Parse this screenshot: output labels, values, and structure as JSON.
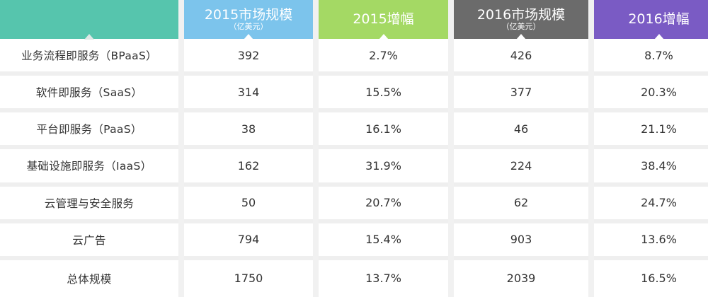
{
  "chart_data": {
    "type": "table",
    "columns": [
      {
        "main": "",
        "sub": "",
        "color": "#56c5ad"
      },
      {
        "main": "2015市场规模",
        "sub": "（亿美元）",
        "color": "#7cc4ec"
      },
      {
        "main": "2015增幅",
        "sub": "",
        "color": "#a4d964"
      },
      {
        "main": "2016市场规模",
        "sub": "（亿美元）",
        "color": "#6b6b6b"
      },
      {
        "main": "2016增幅",
        "sub": "",
        "color": "#7a5bc4"
      }
    ],
    "rows": [
      {
        "label": "业务流程即服务（BPaaS）",
        "size_2015": "392",
        "growth_2015": "2.7%",
        "size_2016": "426",
        "growth_2016": "8.7%"
      },
      {
        "label": "软件即服务（SaaS）",
        "size_2015": "314",
        "growth_2015": "15.5%",
        "size_2016": "377",
        "growth_2016": "20.3%"
      },
      {
        "label": "平台即服务（PaaS）",
        "size_2015": "38",
        "growth_2015": "16.1%",
        "size_2016": "46",
        "growth_2016": "21.1%"
      },
      {
        "label": "基础设施即服务（IaaS）",
        "size_2015": "162",
        "growth_2015": "31.9%",
        "size_2016": "224",
        "growth_2016": "38.4%"
      },
      {
        "label": "云管理与安全服务",
        "size_2015": "50",
        "growth_2015": "20.7%",
        "size_2016": "62",
        "growth_2016": "24.7%"
      },
      {
        "label": "云广告",
        "size_2015": "794",
        "growth_2015": "15.4%",
        "size_2016": "903",
        "growth_2016": "13.6%"
      },
      {
        "label": "总体规模",
        "size_2015": "1750",
        "growth_2015": "13.7%",
        "size_2016": "2039",
        "growth_2016": "16.5%"
      }
    ]
  }
}
